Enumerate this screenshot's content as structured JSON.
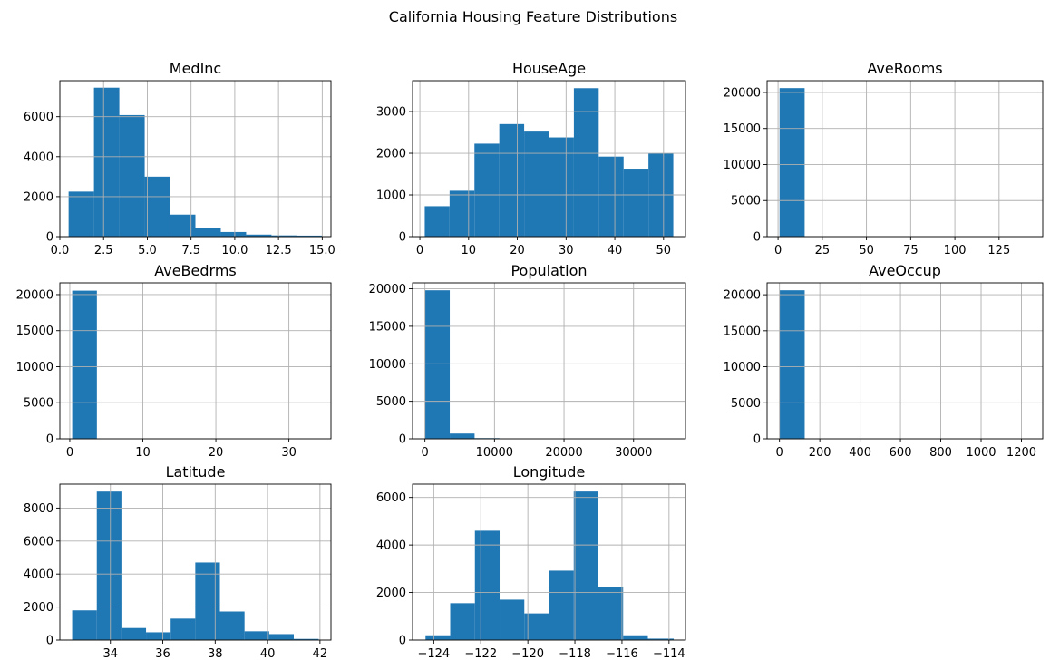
{
  "figure": {
    "title": "California Housing Feature Distributions"
  },
  "colors": {
    "bar": "#1f77b4",
    "grid": "#b0b0b0",
    "axis": "#000000",
    "background": "#ffffff"
  },
  "chart_data": [
    {
      "type": "bar",
      "title": "MedInc",
      "bin_edges": [
        0.4999,
        1.95,
        3.4,
        4.85,
        6.3,
        7.75,
        9.2,
        10.65,
        12.1,
        13.55,
        15.0001
      ],
      "values": [
        2250,
        7450,
        6080,
        3000,
        1100,
        450,
        230,
        100,
        60,
        50
      ],
      "xlim": [
        0,
        15.5
      ],
      "ylim": [
        0,
        7800
      ],
      "xticks": [
        0.0,
        2.5,
        5.0,
        7.5,
        10.0,
        12.5,
        15.0
      ],
      "xtick_labels": [
        "0.0",
        "2.5",
        "5.0",
        "7.5",
        "10.0",
        "12.5",
        "15.0"
      ],
      "yticks": [
        0,
        2000,
        4000,
        6000
      ],
      "ytick_labels": [
        "0",
        "2000",
        "4000",
        "6000"
      ],
      "grid": true
    },
    {
      "type": "bar",
      "title": "HouseAge",
      "bin_edges": [
        1,
        6.1,
        11.2,
        16.3,
        21.4,
        26.5,
        31.6,
        36.7,
        41.8,
        46.9,
        52
      ],
      "values": [
        730,
        1100,
        2230,
        2700,
        2520,
        2380,
        3560,
        1920,
        1630,
        1990
      ],
      "xlim": [
        -1.5,
        54.5
      ],
      "ylim": [
        0,
        3740
      ],
      "xticks": [
        0,
        10,
        20,
        30,
        40,
        50
      ],
      "xtick_labels": [
        "0",
        "10",
        "20",
        "30",
        "40",
        "50"
      ],
      "yticks": [
        0,
        1000,
        2000,
        3000
      ],
      "ytick_labels": [
        "0",
        "1000",
        "2000",
        "3000"
      ],
      "grid": true
    },
    {
      "type": "bar",
      "title": "AveRooms",
      "bin_edges": [
        0.85,
        15.03,
        29.21,
        43.39,
        57.57,
        71.75,
        85.93,
        100.11,
        114.29,
        128.47,
        142.65
      ],
      "values": [
        20600,
        20,
        5,
        3,
        2,
        2,
        1,
        1,
        0,
        1
      ],
      "xlim": [
        -6.2,
        149.7
      ],
      "ylim": [
        0,
        21630
      ],
      "xticks": [
        0,
        25,
        50,
        75,
        100,
        125
      ],
      "xtick_labels": [
        "0",
        "25",
        "50",
        "75",
        "100",
        "125"
      ],
      "yticks": [
        0,
        5000,
        10000,
        15000,
        20000
      ],
      "ytick_labels": [
        "0",
        "5000",
        "10000",
        "15000",
        "20000"
      ],
      "grid": true
    },
    {
      "type": "bar",
      "title": "AveBedrms",
      "bin_edges": [
        0.33,
        3.71,
        7.08,
        10.45,
        13.82,
        17.2,
        20.57,
        23.94,
        27.31,
        30.69,
        34.07
      ],
      "values": [
        20550,
        60,
        10,
        4,
        2,
        1,
        1,
        0,
        0,
        1
      ],
      "xlim": [
        -1.36,
        35.76
      ],
      "ylim": [
        0,
        21630
      ],
      "xticks": [
        0,
        10,
        20,
        30
      ],
      "xtick_labels": [
        "0",
        "10",
        "20",
        "30"
      ],
      "yticks": [
        0,
        5000,
        10000,
        15000,
        20000
      ],
      "ytick_labels": [
        "0",
        "5000",
        "10000",
        "15000",
        "20000"
      ],
      "grid": true
    },
    {
      "type": "bar",
      "title": "Population",
      "bin_edges": [
        3,
        3570.9,
        7138.8,
        10706.7,
        14274.6,
        17842.5,
        21410.4,
        24978.3,
        28546.2,
        32114.1,
        35682
      ],
      "values": [
        19800,
        700,
        90,
        20,
        5,
        2,
        1,
        1,
        0,
        1
      ],
      "xlim": [
        -1780,
        37465
      ],
      "ylim": [
        0,
        20790
      ],
      "xticks": [
        0,
        10000,
        20000,
        30000
      ],
      "xtick_labels": [
        "0",
        "10000",
        "20000",
        "30000"
      ],
      "yticks": [
        0,
        5000,
        10000,
        15000,
        20000
      ],
      "ytick_labels": [
        "0",
        "5000",
        "10000",
        "15000",
        "20000"
      ],
      "grid": true
    },
    {
      "type": "bar",
      "title": "AveOccup",
      "bin_edges": [
        0.69,
        124.98,
        249.28,
        373.57,
        497.87,
        622.16,
        746.46,
        870.75,
        995.04,
        1119.34,
        1243.63
      ],
      "values": [
        20620,
        5,
        2,
        1,
        1,
        1,
        0,
        0,
        0,
        1
      ],
      "xlim": [
        -61.5,
        1305.8
      ],
      "ylim": [
        0,
        21650
      ],
      "xticks": [
        0,
        200,
        400,
        600,
        800,
        1000,
        1200
      ],
      "xtick_labels": [
        "0",
        "200",
        "400",
        "600",
        "800",
        "1000",
        "1200"
      ],
      "yticks": [
        0,
        5000,
        10000,
        15000,
        20000
      ],
      "ytick_labels": [
        "0",
        "5000",
        "10000",
        "15000",
        "20000"
      ],
      "grid": true
    },
    {
      "type": "bar",
      "title": "Latitude",
      "bin_edges": [
        32.54,
        33.48,
        34.42,
        35.36,
        36.3,
        37.24,
        38.18,
        39.12,
        40.06,
        41.0,
        41.95
      ],
      "values": [
        1800,
        9000,
        730,
        470,
        1300,
        4700,
        1730,
        530,
        360,
        70
      ],
      "xlim": [
        32.07,
        42.42
      ],
      "ylim": [
        0,
        9450
      ],
      "xticks": [
        34,
        36,
        38,
        40,
        42
      ],
      "xtick_labels": [
        "34",
        "36",
        "38",
        "40",
        "42"
      ],
      "yticks": [
        0,
        2000,
        4000,
        6000,
        8000
      ],
      "ytick_labels": [
        "0",
        "2000",
        "4000",
        "6000",
        "8000"
      ],
      "grid": true
    },
    {
      "type": "bar",
      "title": "Longitude",
      "bin_edges": [
        -124.35,
        -123.3,
        -122.25,
        -121.2,
        -120.15,
        -119.1,
        -118.05,
        -117.0,
        -115.95,
        -114.9,
        -113.8
      ],
      "values": [
        200,
        1550,
        4600,
        1700,
        1120,
        2920,
        6250,
        2250,
        200,
        60
      ],
      "xlim": [
        -124.9,
        -113.3
      ],
      "ylim": [
        0,
        6560
      ],
      "xticks": [
        -124,
        -122,
        -120,
        -118,
        -116,
        -114
      ],
      "xtick_labels": [
        "−124",
        "−122",
        "−120",
        "−118",
        "−116",
        "−114"
      ],
      "yticks": [
        0,
        2000,
        4000,
        6000
      ],
      "ytick_labels": [
        "0",
        "2000",
        "4000",
        "6000"
      ],
      "grid": true
    }
  ]
}
